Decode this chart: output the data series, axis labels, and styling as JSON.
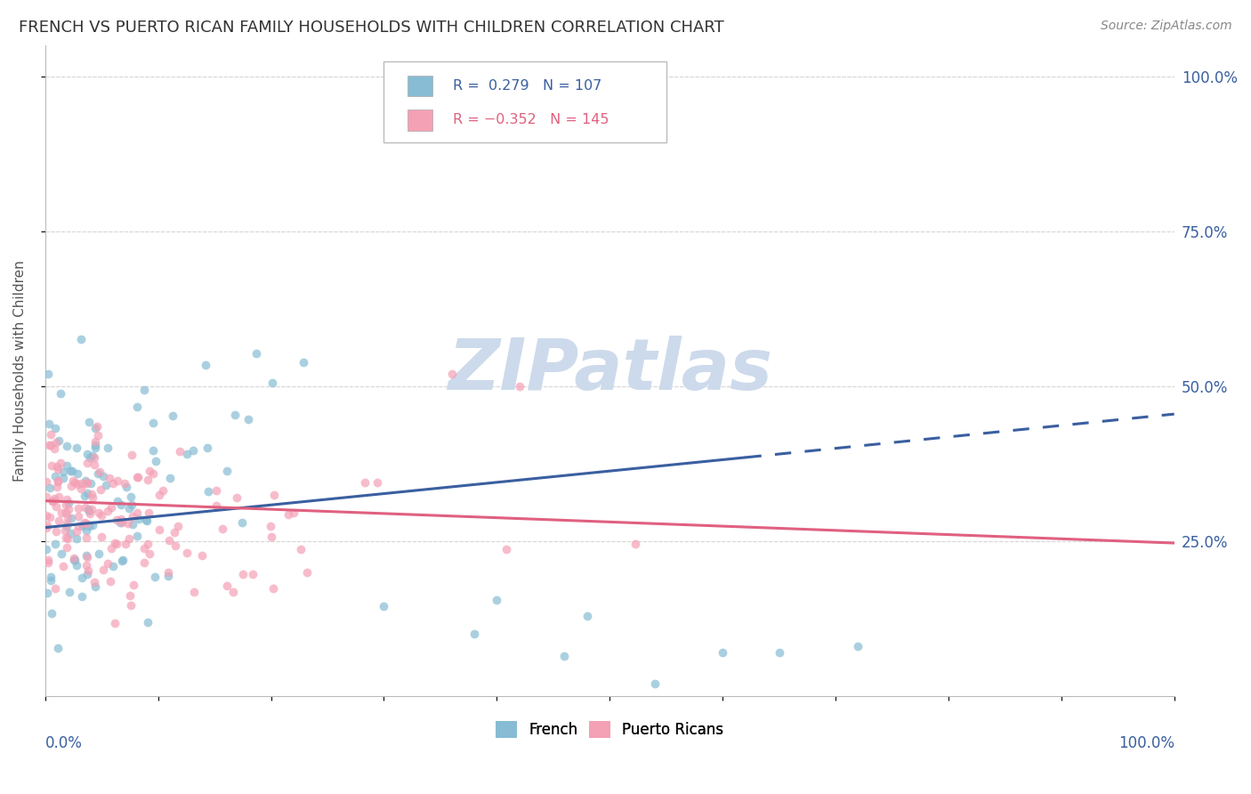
{
  "title": "FRENCH VS PUERTO RICAN FAMILY HOUSEHOLDS WITH CHILDREN CORRELATION CHART",
  "source": "Source: ZipAtlas.com",
  "ylabel": "Family Households with Children",
  "french_R": 0.279,
  "french_N": 107,
  "puerto_rican_R": -0.352,
  "puerto_rican_N": 145,
  "french_color": "#87bcd4",
  "puerto_rican_color": "#f4a0b5",
  "trend_blue": "#3a5fa0",
  "trend_pink": "#e06080",
  "background_color": "#ffffff",
  "watermark_color": "#ccdaeb",
  "grid_color": "#d8d8d8",
  "title_color": "#333333",
  "xlim": [
    0.0,
    1.0
  ],
  "ylim": [
    0.0,
    1.05
  ],
  "french_line_solid_end": 0.62,
  "french_line_y_start": 0.272,
  "french_line_y_end_solid": 0.385,
  "french_line_y_end_dashed": 0.455,
  "pr_line_y_start": 0.315,
  "pr_line_y_end": 0.247
}
